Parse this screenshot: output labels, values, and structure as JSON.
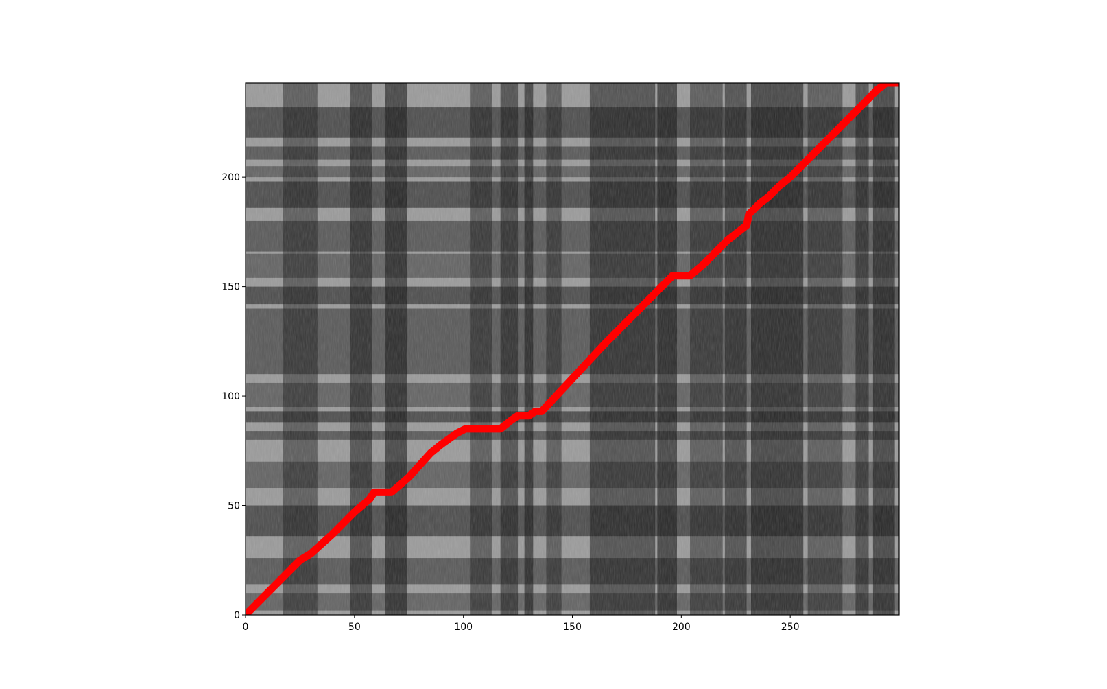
{
  "chart_data": {
    "type": "heatmap",
    "title": "",
    "xlabel": "",
    "ylabel": "",
    "xlim": [
      0,
      300
    ],
    "ylim": [
      0,
      243
    ],
    "grid": false,
    "colormap": "gray",
    "xticks": [
      0,
      50,
      100,
      150,
      200,
      250
    ],
    "yticks": [
      0,
      50,
      100,
      150,
      200
    ],
    "x_dark_bands": [
      [
        17,
        33
      ],
      [
        48,
        58
      ],
      [
        64,
        74
      ],
      [
        103,
        113
      ],
      [
        117,
        125
      ],
      [
        128,
        132
      ],
      [
        138,
        145
      ],
      [
        158,
        188
      ],
      [
        189,
        198
      ],
      [
        204,
        219
      ],
      [
        220,
        230
      ],
      [
        232,
        256
      ],
      [
        258,
        274
      ],
      [
        280,
        286
      ],
      [
        288,
        298
      ]
    ],
    "y_dark_bands": [
      [
        2,
        10
      ],
      [
        14,
        26
      ],
      [
        36,
        50
      ],
      [
        58,
        70
      ],
      [
        80,
        84
      ],
      [
        88,
        93
      ],
      [
        95,
        106
      ],
      [
        110,
        140
      ],
      [
        142,
        150
      ],
      [
        154,
        165
      ],
      [
        166,
        180
      ],
      [
        186,
        198
      ],
      [
        200,
        205
      ],
      [
        208,
        214
      ],
      [
        218,
        232
      ]
    ],
    "path": {
      "color": "#ff0000",
      "points": [
        [
          0,
          0
        ],
        [
          10,
          10
        ],
        [
          20,
          20
        ],
        [
          25,
          25
        ],
        [
          30,
          28
        ],
        [
          40,
          37
        ],
        [
          50,
          47
        ],
        [
          57,
          53
        ],
        [
          59,
          56
        ],
        [
          67,
          56
        ],
        [
          75,
          63
        ],
        [
          85,
          74
        ],
        [
          90,
          78
        ],
        [
          97,
          83
        ],
        [
          101,
          85
        ],
        [
          117,
          85
        ],
        [
          122,
          89
        ],
        [
          125,
          91
        ],
        [
          130,
          91
        ],
        [
          133,
          93
        ],
        [
          136,
          93
        ],
        [
          150,
          108
        ],
        [
          165,
          124
        ],
        [
          180,
          139
        ],
        [
          196,
          155
        ],
        [
          204,
          155
        ],
        [
          210,
          160
        ],
        [
          221,
          171
        ],
        [
          230,
          178
        ],
        [
          231,
          183
        ],
        [
          236,
          188
        ],
        [
          240,
          191
        ],
        [
          245,
          196
        ],
        [
          250,
          200
        ],
        [
          263,
          213
        ],
        [
          272,
          222
        ],
        [
          280,
          230
        ],
        [
          290,
          240
        ],
        [
          294,
          243
        ],
        [
          300,
          243
        ]
      ]
    }
  }
}
